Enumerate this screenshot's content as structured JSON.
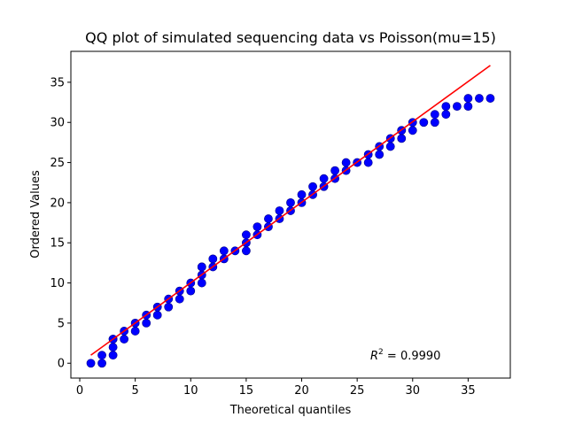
{
  "chart_data": {
    "type": "scatter",
    "title": "QQ plot of simulated sequencing data vs Poisson(mu=15)",
    "xlabel": "Theoretical quantiles",
    "ylabel": "Ordered Values",
    "xlim": [
      -0.8,
      38.8
    ],
    "ylim": [
      -1.85,
      38.85
    ],
    "xticks": [
      0,
      5,
      10,
      15,
      20,
      25,
      30,
      35
    ],
    "yticks": [
      0,
      5,
      10,
      15,
      20,
      25,
      30,
      35
    ],
    "grid": false,
    "annotation": {
      "base": "R",
      "sup": "2",
      "rest": " = 0.9990"
    },
    "series": [
      {
        "kind": "points",
        "color": "#0000ff",
        "edgecolor": "#00008b",
        "x": [
          1,
          2,
          2,
          3,
          3,
          3,
          3,
          4,
          4,
          5,
          5,
          6,
          6,
          7,
          7,
          8,
          8,
          9,
          9,
          10,
          10,
          11,
          11,
          11,
          11,
          12,
          12,
          13,
          13,
          14,
          15,
          15,
          15,
          16,
          16,
          17,
          17,
          18,
          18,
          19,
          19,
          20,
          20,
          21,
          21,
          22,
          22,
          23,
          23,
          24,
          24,
          25,
          26,
          26,
          27,
          27,
          28,
          28,
          29,
          29,
          29,
          30,
          30,
          31,
          32,
          32,
          33,
          33,
          34,
          35,
          35,
          36,
          37
        ],
        "y": [
          0,
          0,
          1,
          1,
          2,
          3,
          3,
          3,
          4,
          4,
          5,
          5,
          6,
          6,
          7,
          7,
          8,
          8,
          9,
          9,
          10,
          10,
          11,
          12,
          12,
          12,
          13,
          13,
          14,
          14,
          14,
          15,
          16,
          16,
          17,
          17,
          18,
          18,
          19,
          19,
          20,
          20,
          21,
          21,
          22,
          22,
          23,
          23,
          24,
          24,
          25,
          25,
          25,
          26,
          26,
          27,
          27,
          28,
          28,
          29,
          29,
          29,
          30,
          30,
          30,
          31,
          31,
          32,
          32,
          32,
          33,
          33,
          33
        ]
      },
      {
        "kind": "line",
        "color": "#ff0000",
        "x": [
          1,
          37
        ],
        "y": [
          1.0,
          37.1
        ]
      }
    ]
  }
}
